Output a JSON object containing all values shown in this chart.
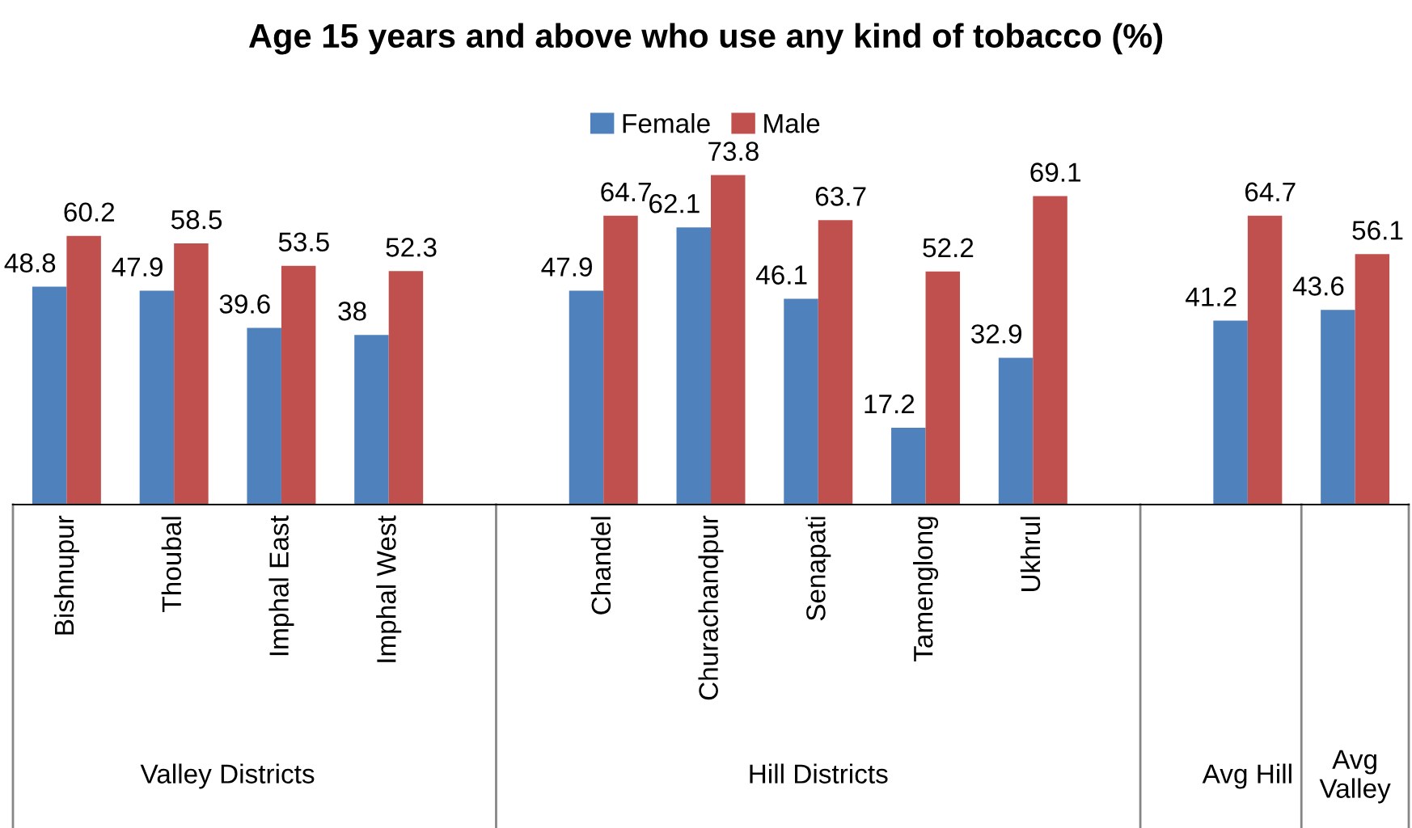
{
  "chart_data": {
    "type": "bar",
    "title": "Age 15 years and above who use any kind of tobacco (%)",
    "categories": [
      "Bishnupur",
      "Thoubal",
      "Imphal East",
      "Imphal West",
      null,
      "Chandel",
      "Churachandpur",
      "Senapati",
      "Tamenglong",
      "Ukhrul",
      null,
      null,
      null
    ],
    "series": [
      {
        "name": "Female",
        "color": "#4f81bd",
        "values": [
          48.8,
          47.9,
          39.6,
          38,
          null,
          47.9,
          62.1,
          46.1,
          17.2,
          32.9,
          null,
          41.2,
          43.6
        ]
      },
      {
        "name": "Male",
        "color": "#c0504d",
        "values": [
          60.2,
          58.5,
          53.5,
          52.3,
          null,
          64.7,
          73.8,
          63.7,
          52.2,
          69.1,
          null,
          64.7,
          56.1
        ]
      }
    ],
    "annotations": [
      "Valley Districts",
      "Hill Districts",
      "Avg Hill",
      "Avg Valley"
    ],
    "data_labels": true,
    "legend": "top"
  }
}
